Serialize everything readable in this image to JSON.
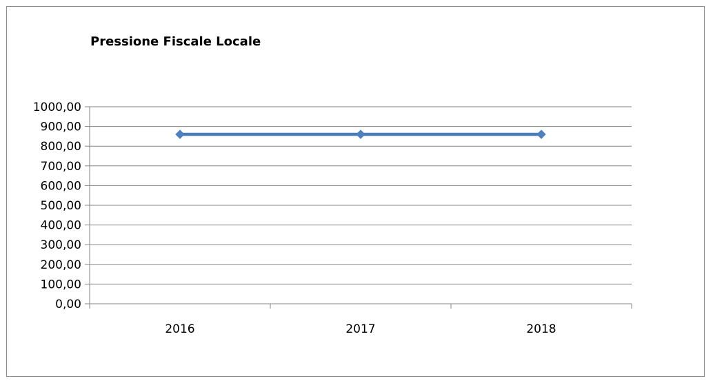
{
  "chart_data": {
    "type": "line",
    "title": "Pressione Fiscale Locale",
    "xlabel": "",
    "ylabel": "",
    "categories": [
      "2016",
      "2017",
      "2018"
    ],
    "series": [
      {
        "values": [
          860,
          860,
          860
        ]
      }
    ],
    "ylim": [
      0,
      1000
    ],
    "y_ticks": [
      "0,00",
      "100,00",
      "200,00",
      "300,00",
      "400,00",
      "500,00",
      "600,00",
      "700,00",
      "800,00",
      "900,00",
      "1000,00"
    ],
    "grid": true,
    "legend": "none",
    "colors": {
      "series": "#4a7ebb",
      "marker": "#4f81bd",
      "grid": "#868686",
      "axis": "#868686"
    }
  }
}
